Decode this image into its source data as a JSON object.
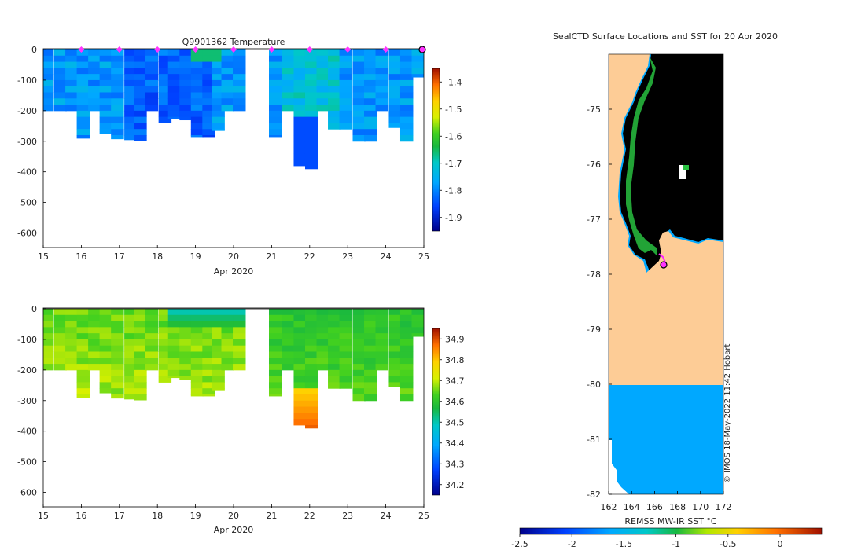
{
  "chart_data": [
    {
      "type": "heatmap",
      "title": "Q9901362  Temperature",
      "xlabel": "Apr 2020",
      "ylabel": "",
      "x_ticks": [
        "15",
        "16",
        "17",
        "18",
        "19",
        "20",
        "21",
        "22",
        "23",
        "24",
        "25"
      ],
      "y_ticks": [
        "0",
        "-100",
        "-200",
        "-300",
        "-400",
        "-500",
        "-600"
      ],
      "xlim": [
        15,
        25
      ],
      "ylim": [
        -650,
        0
      ],
      "colorbar_ticks": [
        "-1.4",
        "-1.5",
        "-1.6",
        "-1.7",
        "-1.8",
        "-1.9"
      ],
      "colorbar_range": [
        -1.95,
        -1.35
      ],
      "profile_times": [
        15.1,
        15.45,
        15.75,
        16.05,
        16.35,
        16.65,
        16.95,
        17.3,
        17.55,
        17.85,
        18.2,
        18.45,
        18.75,
        19.05,
        19.35,
        19.6,
        19.85,
        20.15,
        21.1,
        21.45,
        21.75,
        22.05,
        22.35,
        22.65,
        22.95,
        23.3,
        23.6,
        23.9,
        24.25,
        24.55,
        24.85
      ],
      "profile_max_depth": [
        200,
        200,
        200,
        290,
        200,
        275,
        292,
        295,
        298,
        200,
        240,
        225,
        230,
        285,
        285,
        265,
        200,
        200,
        285,
        200,
        380,
        390,
        200,
        260,
        260,
        300,
        300,
        200,
        255,
        300,
        90
      ],
      "surface_marker_days": [
        16,
        17,
        18,
        19,
        20,
        21,
        22,
        23,
        24
      ],
      "current_position_day": 25.0
    },
    {
      "type": "heatmap",
      "title": "",
      "xlabel": "Apr 2020",
      "ylabel": "",
      "x_ticks": [
        "15",
        "16",
        "17",
        "18",
        "19",
        "20",
        "21",
        "22",
        "23",
        "24",
        "25"
      ],
      "y_ticks": [
        "0",
        "-100",
        "-200",
        "-300",
        "-400",
        "-500",
        "-600"
      ],
      "xlim": [
        15,
        25
      ],
      "ylim": [
        -650,
        0
      ],
      "colorbar_ticks": [
        "34.9",
        "34.8",
        "34.7",
        "34.6",
        "34.5",
        "34.4",
        "34.3",
        "34.2"
      ],
      "colorbar_range": [
        34.15,
        34.95
      ]
    },
    {
      "type": "map",
      "title": "SealCTD Surface Locations and SST for 20 Apr 2020",
      "x_ticks": [
        "162",
        "164",
        "166",
        "168",
        "170",
        "172"
      ],
      "y_ticks": [
        "-75",
        "-76",
        "-77",
        "-78",
        "-79",
        "-80",
        "-81",
        "-82"
      ],
      "xlim": [
        162,
        172
      ],
      "ylim": [
        -82,
        -74
      ],
      "colorbar_label": "REMSS MW-IR SST °C",
      "colorbar_ticks": [
        "-2.5",
        "-2",
        "-1.5",
        "-1",
        "-0.5",
        "0"
      ],
      "colorbar_range": [
        -2.5,
        0.4
      ],
      "credit": "© IMOS 18-May-2022 11:42 Hobart",
      "last_position": {
        "lon": 166.9,
        "lat": -77.85
      }
    }
  ]
}
